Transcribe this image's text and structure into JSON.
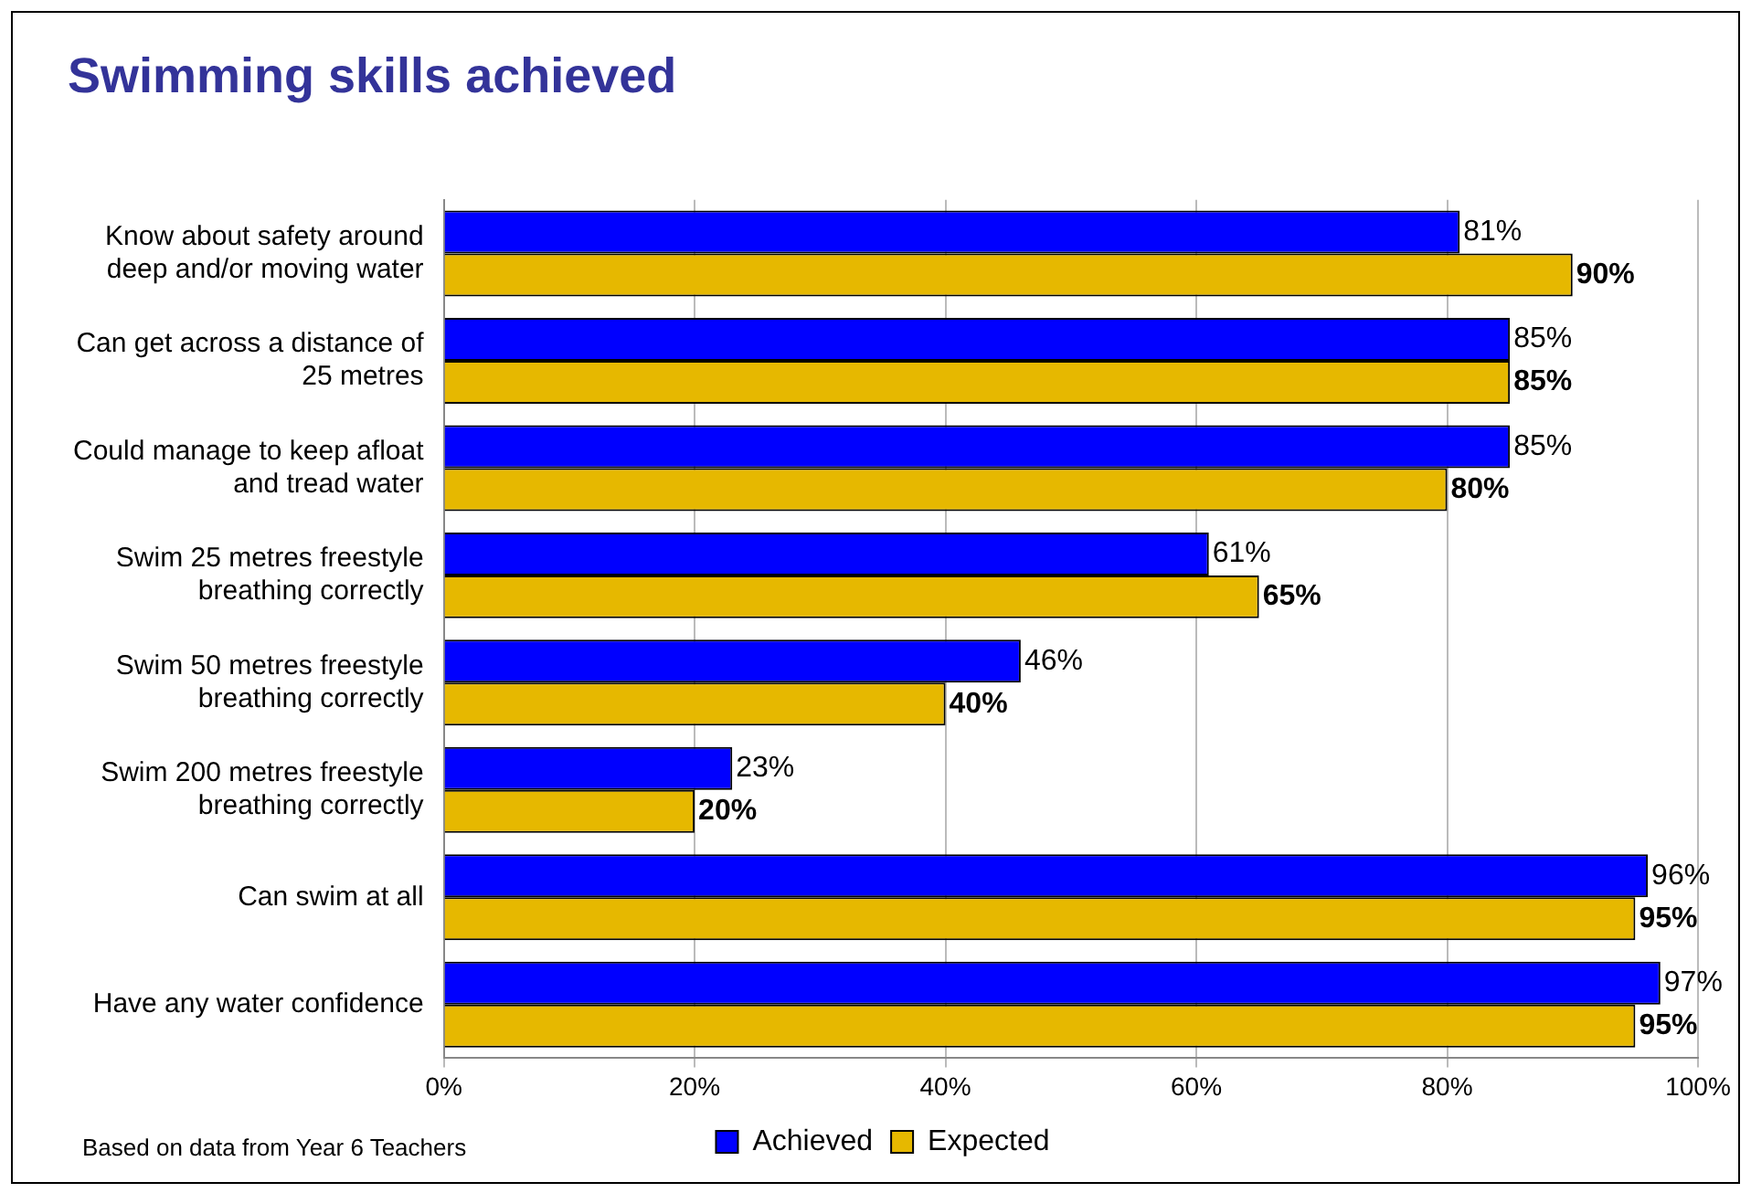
{
  "chart_data": {
    "type": "bar",
    "orientation": "horizontal",
    "title": "Swimming skills achieved",
    "categories": [
      "Know about safety around deep and/or moving water",
      "Can get across a distance of 25 metres",
      "Could manage to keep afloat and tread water",
      "Swim 25 metres freestyle breathing correctly",
      "Swim 50 metres freestyle breathing correctly",
      "Swim 200 metres freestyle breathing correctly",
      "Can swim at all",
      "Have any water confidence"
    ],
    "series": [
      {
        "name": "Achieved",
        "color": "#0000ff",
        "values": [
          81,
          85,
          85,
          61,
          46,
          23,
          96,
          97
        ],
        "value_labels": [
          "81%",
          "85%",
          "85%",
          "61%",
          "46%",
          "23%",
          "96%",
          "97%"
        ]
      },
      {
        "name": "Expected",
        "color": "#e6b800",
        "values": [
          90,
          85,
          80,
          65,
          40,
          20,
          95,
          95
        ],
        "value_labels": [
          "90%",
          "85%",
          "80%",
          "65%",
          "40%",
          "20%",
          "95%",
          "95%"
        ]
      }
    ],
    "xlim": [
      0,
      100
    ],
    "xticks": [
      {
        "value": 0,
        "label": "0%"
      },
      {
        "value": 20,
        "label": "20%"
      },
      {
        "value": 40,
        "label": "40%"
      },
      {
        "value": 60,
        "label": "60%"
      },
      {
        "value": 80,
        "label": "80%"
      },
      {
        "value": 100,
        "label": "100%"
      }
    ],
    "grid": "x",
    "legend": "bottom",
    "annotations": [
      "Based on data from Year 6 Teachers"
    ]
  }
}
